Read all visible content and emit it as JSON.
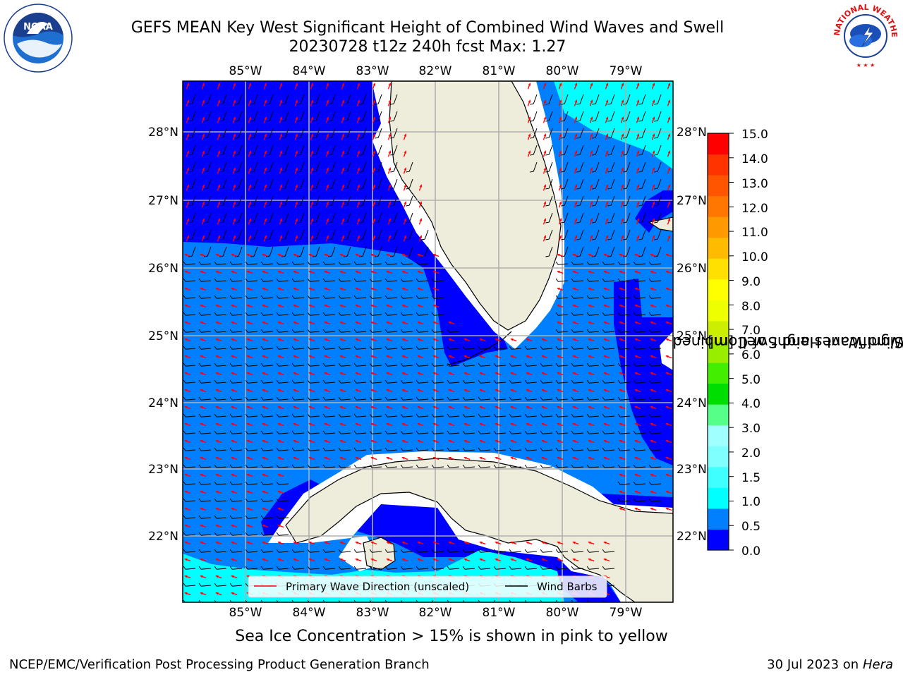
{
  "header": {
    "title_line1": "GEFS MEAN Key West Significant Height of Combined Wind Waves and Swell",
    "title_line2": "20230728 t12z 240h fcst   Max: 1.27"
  },
  "logos": {
    "left": {
      "icon": "noaa-logo-icon",
      "text": "NOAA"
    },
    "right": {
      "icon": "nws-logo-icon",
      "text": "NATIONAL WEATHER SERVICE"
    }
  },
  "map": {
    "lon_labels": [
      "85°W",
      "84°W",
      "83°W",
      "82°W",
      "81°W",
      "80°W",
      "79°W"
    ],
    "lat_labels": [
      "28°N",
      "27°N",
      "26°N",
      "25°N",
      "24°N",
      "23°N",
      "22°N"
    ],
    "lon_range": [
      -86.0,
      -78.25
    ],
    "lat_range": [
      21.05,
      28.75
    ],
    "colors": {
      "land": "#eeeddb",
      "deep_blue": "#0000ff",
      "mid_blue": "#0080ff",
      "cyan": "#00ffff",
      "grid": "#b0b0b0",
      "wave_arrow": "#ff0000",
      "wind_barb": "#000000"
    },
    "legend": {
      "wave_label": "Primary Wave Direction (unscaled)",
      "wind_label": "Wind Barbs"
    }
  },
  "colorbar": {
    "title_line1": "Significant Height of Combined",
    "title_line2": "Wind Waves and Swell [m]",
    "ticks": [
      "15.0",
      "14.0",
      "13.0",
      "12.0",
      "11.0",
      "10.0",
      "9.0",
      "8.0",
      "7.0",
      "6.0",
      "5.0",
      "4.0",
      "3.0",
      "2.0",
      "1.5",
      "1.0",
      "0.5",
      "0.0"
    ],
    "colors_bottom_to_top": [
      "#0000ff",
      "#0080ff",
      "#00ffff",
      "#40ffff",
      "#80ffff",
      "#a0ffff",
      "#55ff88",
      "#00dd00",
      "#44ee00",
      "#99ee00",
      "#ccee00",
      "#eeff00",
      "#ffff00",
      "#ffe000",
      "#ffbb00",
      "#ff9900",
      "#ff7700",
      "#ff5500",
      "#ff3300",
      "#ff0000"
    ]
  },
  "footer": {
    "note": "Sea Ice Concentration > 15% is shown in pink to yellow",
    "left": "NCEP/EMC/Verification Post Processing Product Generation Branch",
    "right_date": "30 Jul 2023 on ",
    "right_host": "Hera"
  }
}
